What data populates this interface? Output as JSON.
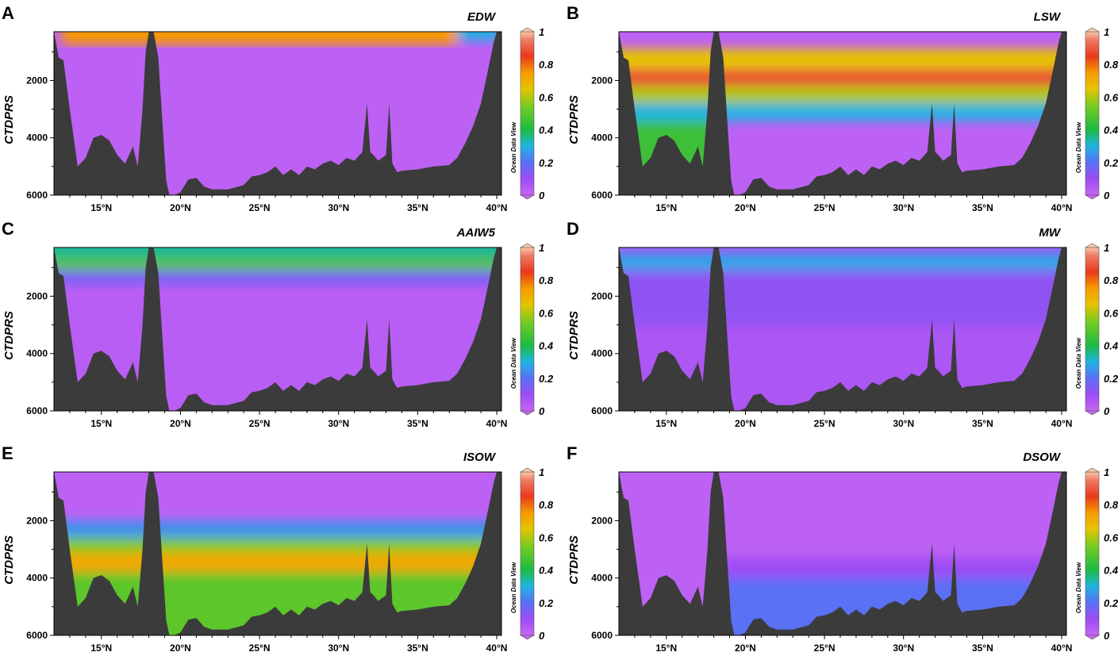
{
  "chart_data": [
    {
      "type": "heatmap",
      "label": "A",
      "title": "EDW",
      "ylabel": "CTDPRS",
      "ylim": [
        6000,
        300
      ],
      "xlim": [
        12,
        40.3
      ],
      "yticks": [
        "2000",
        "4000",
        "6000"
      ],
      "xticks": [
        "15°N",
        "20°N",
        "25°N",
        "30°N",
        "35°N",
        "40°N"
      ],
      "colorbar": {
        "range": [
          0,
          1
        ],
        "ticks": [
          "0",
          "0.2",
          "0.4",
          "0.6",
          "0.8",
          "1"
        ],
        "watermark": "Ocean Data View"
      },
      "layers": [
        {
          "depth_top": 300,
          "depth_bottom": 750,
          "value": 0.75,
          "lat_from": 12.5,
          "lat_to": 37.5
        },
        {
          "depth_top": 300,
          "depth_bottom": 600,
          "value": 0.3,
          "lat_from": 37.5,
          "lat_to": 40.3
        }
      ],
      "background_value": 0.02
    },
    {
      "type": "heatmap",
      "label": "B",
      "title": "LSW",
      "ylabel": "CTDPRS",
      "ylim": [
        6000,
        300
      ],
      "xlim": [
        12,
        40.3
      ],
      "yticks": [
        "2000",
        "4000",
        "6000"
      ],
      "xticks": [
        "15°N",
        "20°N",
        "25°N",
        "30°N",
        "35°N",
        "40°N"
      ],
      "colorbar": {
        "range": [
          0,
          1
        ],
        "ticks": [
          "0",
          "0.2",
          "0.4",
          "0.6",
          "0.8",
          "1"
        ],
        "watermark": "Ocean Data View"
      },
      "layers": [
        {
          "depth_top": 900,
          "depth_bottom": 1600,
          "value": 0.65
        },
        {
          "depth_top": 1600,
          "depth_bottom": 2200,
          "value": 0.88
        },
        {
          "depth_top": 2200,
          "depth_bottom": 2800,
          "value": 0.6
        },
        {
          "depth_top": 2800,
          "depth_bottom": 3400,
          "value": 0.3
        }
      ],
      "west_basin": {
        "lat_to": 18,
        "depth_top": 3200,
        "depth_bottom": 6000,
        "value": 0.45
      },
      "background_value": 0.02
    },
    {
      "type": "heatmap",
      "label": "C",
      "title": "AAIW5",
      "ylabel": "CTDPRS",
      "ylim": [
        6000,
        300
      ],
      "xlim": [
        12,
        40.3
      ],
      "yticks": [
        "2000",
        "4000",
        "6000"
      ],
      "xticks": [
        "15°N",
        "20°N",
        "25°N",
        "30°N",
        "35°N",
        "40°N"
      ],
      "colorbar": {
        "range": [
          0,
          1
        ],
        "ticks": [
          "0",
          "0.2",
          "0.4",
          "0.6",
          "0.8",
          "1"
        ],
        "watermark": "Ocean Data View"
      },
      "layers": [
        {
          "depth_top": 300,
          "depth_bottom": 700,
          "value": 0.35
        },
        {
          "depth_top": 700,
          "depth_bottom": 1100,
          "value": 0.5
        },
        {
          "depth_top": 1100,
          "depth_bottom": 1600,
          "value": 0.15
        }
      ],
      "background_value": 0.03
    },
    {
      "type": "heatmap",
      "label": "D",
      "title": "MW",
      "ylabel": "CTDPRS",
      "ylim": [
        6000,
        300
      ],
      "xlim": [
        12,
        40.3
      ],
      "yticks": [
        "2000",
        "4000",
        "6000"
      ],
      "xticks": [
        "15°N",
        "20°N",
        "25°N",
        "30°N",
        "35°N",
        "40°N"
      ],
      "colorbar": {
        "range": [
          0,
          1
        ],
        "ticks": [
          "0",
          "0.2",
          "0.4",
          "0.6",
          "0.8",
          "1"
        ],
        "watermark": "Ocean Data View"
      },
      "layers": [
        {
          "depth_top": 500,
          "depth_bottom": 1100,
          "value": 0.28
        },
        {
          "depth_top": 1100,
          "depth_bottom": 3000,
          "value": 0.12
        }
      ],
      "background_value": 0.06
    },
    {
      "type": "heatmap",
      "label": "E",
      "title": "ISOW",
      "ylabel": "CTDPRS",
      "ylim": [
        6000,
        300
      ],
      "xlim": [
        12,
        40.3
      ],
      "yticks": [
        "2000",
        "4000",
        "6000"
      ],
      "xticks": [
        "15°N",
        "20°N",
        "25°N",
        "30°N",
        "35°N",
        "40°N"
      ],
      "colorbar": {
        "range": [
          0,
          1
        ],
        "ticks": [
          "0",
          "0.2",
          "0.4",
          "0.6",
          "0.8",
          "1"
        ],
        "watermark": "Ocean Data View"
      },
      "layers": [
        {
          "depth_top": 2000,
          "depth_bottom": 2600,
          "value": 0.25
        },
        {
          "depth_top": 2600,
          "depth_bottom": 3100,
          "value": 0.55
        },
        {
          "depth_top": 3100,
          "depth_bottom": 3800,
          "value": 0.72
        },
        {
          "depth_top": 3800,
          "depth_bottom": 6000,
          "value": 0.5
        }
      ],
      "west_basin": {
        "lat_to": 18,
        "depth_top": 2400,
        "depth_bottom": 6000,
        "value": 0.35
      },
      "background_value": 0.02
    },
    {
      "type": "heatmap",
      "label": "F",
      "title": "DSOW",
      "ylabel": "CTDPRS",
      "ylim": [
        6000,
        300
      ],
      "xlim": [
        12,
        40.3
      ],
      "yticks": [
        "2000",
        "4000",
        "6000"
      ],
      "xticks": [
        "15°N",
        "20°N",
        "25°N",
        "30°N",
        "35°N",
        "40°N"
      ],
      "colorbar": {
        "range": [
          0,
          1
        ],
        "ticks": [
          "0",
          "0.2",
          "0.4",
          "0.6",
          "0.8",
          "1"
        ],
        "watermark": "Ocean Data View"
      },
      "layers": [
        {
          "depth_top": 3300,
          "depth_bottom": 4000,
          "value": 0.1,
          "lat_from": 18.5,
          "lat_to": 40.3
        },
        {
          "depth_top": 4000,
          "depth_bottom": 6000,
          "value": 0.2,
          "lat_from": 18.5,
          "lat_to": 40.3
        }
      ],
      "background_value": 0.02
    }
  ],
  "bathymetry": {
    "lat": [
      12.0,
      12.3,
      12.6,
      13.0,
      13.5,
      14.0,
      14.5,
      15.0,
      15.5,
      16.0,
      16.5,
      17.0,
      17.3,
      17.6,
      17.8,
      18.0,
      18.3,
      18.6,
      18.9,
      19.1,
      19.3,
      19.6,
      20.0,
      20.5,
      21.0,
      21.5,
      22.0,
      23.0,
      24.0,
      24.5,
      25.0,
      25.5,
      26.0,
      26.5,
      27.0,
      27.5,
      28.0,
      28.5,
      29.0,
      29.5,
      30.0,
      30.5,
      31.0,
      31.5,
      31.8,
      32.0,
      32.2,
      32.5,
      33.0,
      33.2,
      33.4,
      33.7,
      34.0,
      35.0,
      36.0,
      37.0,
      37.5,
      38.0,
      38.5,
      39.0,
      39.5,
      39.8,
      40.0,
      40.3
    ],
    "depth": [
      300,
      1200,
      1300,
      3000,
      5000,
      4700,
      4000,
      3900,
      4100,
      4600,
      4900,
      4300,
      5000,
      3000,
      1000,
      300,
      300,
      1200,
      3800,
      5500,
      6000,
      6000,
      5900,
      5450,
      5400,
      5700,
      5800,
      5800,
      5650,
      5350,
      5300,
      5200,
      5000,
      5300,
      5100,
      5300,
      5000,
      5100,
      4900,
      4800,
      4950,
      4700,
      4800,
      4500,
      2800,
      4500,
      4600,
      4800,
      4600,
      2800,
      4900,
      5200,
      5150,
      5100,
      5000,
      4950,
      4700,
      4200,
      3600,
      2800,
      1500,
      700,
      300,
      300
    ]
  },
  "colors": {
    "land": "#3b3b3b"
  }
}
